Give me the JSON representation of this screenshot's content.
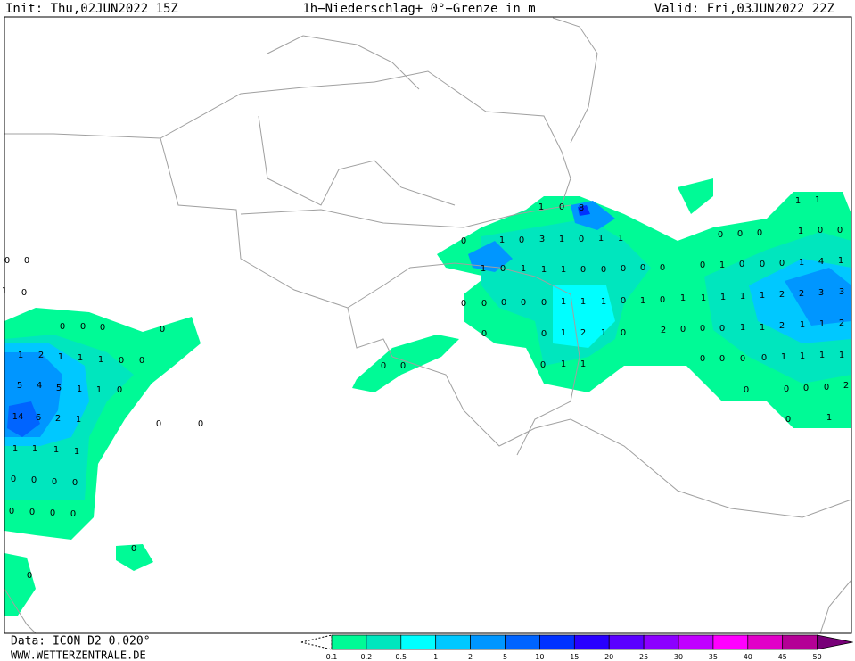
{
  "header": {
    "init": "Init: Thu,02JUN2022 15Z",
    "title": "1h−Niederschlag+ 0°−Grenze in m",
    "valid": "Valid: Fri,03JUN2022 22Z"
  },
  "footer": {
    "data": "Data: ICON D2 0.020°",
    "site": "WWW.WETTERZENTRALE.DE"
  },
  "legend": {
    "ticks": [
      0.1,
      0.2,
      0.5,
      1,
      2,
      5,
      10,
      15,
      20,
      25,
      30,
      35,
      40,
      45,
      50
    ],
    "colors": [
      "#00fa96",
      "#00e6be",
      "#00ffff",
      "#00c8ff",
      "#0096ff",
      "#0064ff",
      "#0032ff",
      "#2800ff",
      "#5a00ff",
      "#8c00ff",
      "#c000ff",
      "#ff00ff",
      "#e100c8",
      "#b40096",
      "#780078"
    ]
  },
  "map_labels": [
    0,
    0,
    1,
    0,
    0,
    0,
    0,
    0,
    1,
    2,
    1,
    1,
    1,
    0,
    0,
    5,
    4,
    5,
    1,
    1,
    0,
    14,
    6,
    2,
    1,
    0,
    0,
    1,
    1,
    1,
    1,
    0,
    0,
    0,
    0,
    0,
    0,
    0,
    0,
    0,
    0,
    0,
    1,
    0,
    3,
    1,
    0,
    1,
    1,
    1,
    0,
    8,
    1,
    0,
    1,
    1,
    1,
    0,
    0,
    0,
    0,
    0,
    0,
    0,
    0,
    0,
    0,
    1,
    1,
    1,
    0,
    1,
    0,
    1,
    0,
    0,
    1,
    2,
    1,
    0,
    2,
    0,
    0,
    0,
    1,
    1,
    2,
    1,
    1,
    2,
    0,
    1,
    1,
    0,
    0,
    0,
    0,
    0,
    0,
    1,
    1,
    1,
    1,
    0,
    1,
    0,
    0,
    0,
    1,
    4,
    1,
    1,
    1,
    1,
    1,
    2,
    2,
    3,
    3,
    0,
    0,
    0,
    1,
    0,
    0,
    1,
    1,
    0,
    0,
    0,
    0,
    2,
    0,
    1
  ]
}
